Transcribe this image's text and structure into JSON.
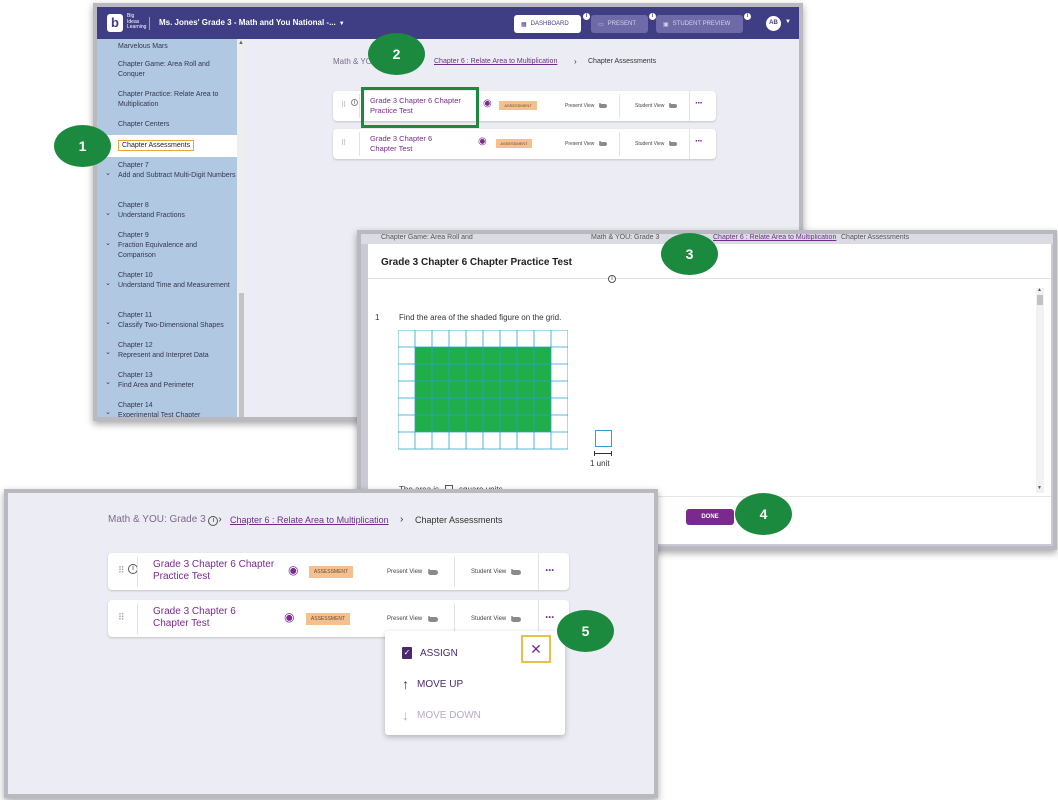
{
  "colors": {
    "topbar": "#3f3d84",
    "sidebar": "#b1c8e2",
    "accent_purple": "#7a2a8c",
    "badge": "#f4c08f",
    "step_green": "#1c8a3e",
    "grid_blue": "#2aa1cf",
    "shaded": "#1fae4a"
  },
  "shot1": {
    "logo": {
      "mark": "b",
      "text": "Big Ideas Learning"
    },
    "course_title": "Ms. Jones' Grade 3 - Math and You National -...",
    "buttons": {
      "dashboard": "DASHBOARD",
      "present": "PRESENT",
      "student_preview": "STUDENT PREVIEW"
    },
    "avatar": "AB",
    "sidebar": {
      "items": [
        "Marvelous Mars",
        "Chapter Game: Area Roll and Conquer",
        "Chapter Practice: Relate Area to Multiplication",
        "Chapter Centers"
      ],
      "active": "Chapter Assessments",
      "chapters": [
        {
          "num": "Chapter 7",
          "title": "Add and Subtract Multi-Digit Numbers"
        },
        {
          "num": "Chapter 8",
          "title": "Understand Fractions"
        },
        {
          "num": "Chapter 9",
          "title": "Fraction Equivalence and Comparison"
        },
        {
          "num": "Chapter 10",
          "title": "Understand Time and Measurement"
        },
        {
          "num": "Chapter 11",
          "title": "Classify Two-Dimensional Shapes"
        },
        {
          "num": "Chapter 12",
          "title": "Represent and Interpret Data"
        },
        {
          "num": "Chapter 13",
          "title": "Find Area and Perimeter"
        },
        {
          "num": "Chapter 14",
          "title": "Experimental Test Chapter"
        }
      ]
    },
    "breadcrumb": {
      "root": "Math & YOU",
      "link": "Chapter 6 : Relate Area to Multiplication",
      "current": "Chapter Assessments"
    },
    "cards": [
      {
        "title": "Grade 3 Chapter 6 Chapter Practice Test",
        "badge": "ASSESSMENT",
        "present": "Present View",
        "student": "Student View"
      },
      {
        "title": "Grade 3 Chapter 6 Chapter Test",
        "badge": "ASSESSMENT",
        "present": "Present View",
        "student": "Student View"
      }
    ]
  },
  "shot2": {
    "behind": {
      "sidebar_item": "Chapter Game: Area Roll and",
      "breadcrumb": "Math & YOU: Grade 3",
      "link": "Chapter 6 : Relate Area to Multiplication",
      "current": "Chapter Assessments"
    },
    "title": "Grade 3 Chapter 6 Chapter Practice Test",
    "question_number": "1",
    "question": "Find the area of the shaded figure on the grid.",
    "unit_label": "1 unit",
    "answer_prefix": "The area is",
    "answer_suffix": "square units.",
    "done": "DONE"
  },
  "shot3": {
    "breadcrumb": {
      "root": "Math & YOU: Grade 3",
      "link": "Chapter 6 : Relate Area to Multiplication",
      "current": "Chapter Assessments"
    },
    "cards": [
      {
        "title": "Grade 3 Chapter 6 Chapter Practice Test",
        "badge": "ASSESSMENT",
        "present": "Present View",
        "student": "Student View"
      },
      {
        "title": "Grade 3 Chapter 6 Chapter Test",
        "badge": "ASSESSMENT",
        "present": "Present View",
        "student": "Student View"
      }
    ],
    "menu": {
      "assign": "ASSIGN",
      "move_up": "MOVE UP",
      "move_down": "MOVE DOWN"
    }
  },
  "steps": [
    "1",
    "2",
    "3",
    "4",
    "5"
  ]
}
